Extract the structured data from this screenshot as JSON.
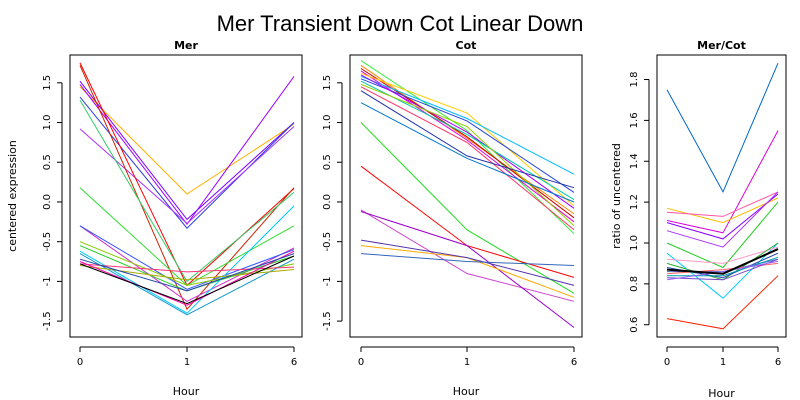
{
  "title": "Mer Transient Down Cot Linear Down",
  "chart_data": [
    {
      "type": "line",
      "title": "Mer",
      "xlabel": "Hour",
      "ylabel": "centered expression",
      "x_ticks": [
        "0",
        "1",
        "6"
      ],
      "y_ticks": [
        "-1.5",
        "-1",
        "-0.5",
        "0.0",
        "0.5",
        "1.0",
        "1.5"
      ],
      "ylim": [
        -1.7,
        1.85
      ],
      "series": [
        {
          "color": "#ffb000",
          "values": [
            1.45,
            0.1,
            0.98
          ]
        },
        {
          "color": "#7f00ff",
          "values": [
            1.52,
            -0.22,
            1.0
          ]
        },
        {
          "color": "#2a3fdd",
          "values": [
            1.32,
            -0.33,
            1.0
          ]
        },
        {
          "color": "#9d00ff",
          "values": [
            1.48,
            -0.28,
            1.58
          ]
        },
        {
          "color": "#aa33ff",
          "values": [
            0.92,
            -0.27,
            0.95
          ]
        },
        {
          "color": "#ff0000",
          "values": [
            1.75,
            -1.05,
            0.17
          ]
        },
        {
          "color": "#cc2200",
          "values": [
            1.72,
            -1.35,
            0.18
          ]
        },
        {
          "color": "#33cc66",
          "values": [
            1.28,
            -1.0,
            0.12
          ]
        },
        {
          "color": "#33dd33",
          "values": [
            0.18,
            -1.05,
            -0.3
          ]
        },
        {
          "color": "#cc33cc",
          "values": [
            -0.3,
            -1.25,
            -0.58
          ]
        },
        {
          "color": "#3355ff",
          "values": [
            -0.3,
            -1.1,
            -0.6
          ]
        },
        {
          "color": "#88cc00",
          "values": [
            -0.5,
            -1.05,
            -0.78
          ]
        },
        {
          "color": "#22cc22",
          "values": [
            -0.55,
            -1.12,
            -0.68
          ]
        },
        {
          "color": "#00ccff",
          "values": [
            -0.62,
            -1.4,
            -0.05
          ]
        },
        {
          "color": "#1199cc",
          "values": [
            -0.65,
            -1.42,
            -0.72
          ]
        },
        {
          "color": "#ff3377",
          "values": [
            -0.78,
            -0.88,
            -0.82
          ]
        },
        {
          "color": "#aaaa00",
          "values": [
            -0.8,
            -0.98,
            -0.85
          ]
        },
        {
          "color": "#ff00aa",
          "values": [
            -0.75,
            -1.3,
            -0.62
          ]
        },
        {
          "color": "#000000",
          "values": [
            -0.78,
            -1.28,
            -0.68
          ]
        },
        {
          "color": "#2244aa",
          "values": [
            -0.72,
            -1.12,
            -0.65
          ]
        }
      ]
    },
    {
      "type": "line",
      "title": "Cot",
      "xlabel": "Hour",
      "ylabel": "",
      "x_ticks": [
        "0",
        "1",
        "6"
      ],
      "y_ticks": [
        "-1.5",
        "-1",
        "-0.5",
        "0.0",
        "0.5",
        "1.0",
        "1.5"
      ],
      "ylim": [
        -1.7,
        1.85
      ],
      "series": [
        {
          "color": "#33ee33",
          "values": [
            1.78,
            0.9,
            -0.4
          ]
        },
        {
          "color": "#ff8800",
          "values": [
            1.72,
            0.8,
            -0.15
          ]
        },
        {
          "color": "#cc0000",
          "values": [
            1.68,
            0.82,
            -0.2
          ]
        },
        {
          "color": "#dd00dd",
          "values": [
            1.65,
            0.78,
            -0.25
          ]
        },
        {
          "color": "#ffcc00",
          "values": [
            1.62,
            1.12,
            -0.05
          ]
        },
        {
          "color": "#00bbff",
          "values": [
            1.58,
            1.05,
            0.35
          ]
        },
        {
          "color": "#2244dd",
          "values": [
            1.55,
            1.02,
            0.12
          ]
        },
        {
          "color": "#aa00ff",
          "values": [
            1.6,
            0.88,
            -0.08
          ]
        },
        {
          "color": "#00ccaa",
          "values": [
            1.52,
            0.85,
            0.03
          ]
        },
        {
          "color": "#99cc00",
          "values": [
            1.48,
            0.95,
            -0.3
          ]
        },
        {
          "color": "#ff3366",
          "values": [
            1.45,
            0.75,
            -0.35
          ]
        },
        {
          "color": "#0077cc",
          "values": [
            1.25,
            0.55,
            0.0
          ]
        },
        {
          "color": "#2233aa",
          "values": [
            1.4,
            0.58,
            0.18
          ]
        },
        {
          "color": "#22dd22",
          "values": [
            1.0,
            -0.35,
            -1.15
          ]
        },
        {
          "color": "#ff0000",
          "values": [
            0.45,
            -0.55,
            -0.95
          ]
        },
        {
          "color": "#cc44cc",
          "values": [
            -0.1,
            -0.9,
            -1.25
          ]
        },
        {
          "color": "#9900cc",
          "values": [
            -0.12,
            -0.55,
            -1.58
          ]
        },
        {
          "color": "#ffaa00",
          "values": [
            -0.55,
            -0.7,
            -1.2
          ]
        },
        {
          "color": "#5533aa",
          "values": [
            -0.48,
            -0.7,
            -1.05
          ]
        },
        {
          "color": "#3366bb",
          "values": [
            -0.65,
            -0.75,
            -0.8
          ]
        }
      ]
    },
    {
      "type": "line",
      "title": "Mer/Cot",
      "xlabel": "Hour",
      "ylabel": "ratio of uncentered",
      "x_ticks": [
        "0",
        "1",
        "6"
      ],
      "y_ticks": [
        "0.6",
        "0.8",
        "1.0",
        "1.2",
        "1.4",
        "1.6",
        "1.8"
      ],
      "ylim": [
        0.54,
        1.92
      ],
      "series": [
        {
          "color": "#0066cc",
          "values": [
            1.75,
            1.25,
            1.88
          ]
        },
        {
          "color": "#dd00dd",
          "values": [
            1.11,
            1.05,
            1.55
          ]
        },
        {
          "color": "#ffbb00",
          "values": [
            1.17,
            1.1,
            1.22
          ]
        },
        {
          "color": "#ff55aa",
          "values": [
            1.15,
            1.13,
            1.25
          ]
        },
        {
          "color": "#8800ff",
          "values": [
            1.1,
            1.02,
            1.24
          ]
        },
        {
          "color": "#aa33ff",
          "values": [
            1.06,
            0.98,
            1.25
          ]
        },
        {
          "color": "#22cc22",
          "values": [
            1.0,
            0.88,
            1.2
          ]
        },
        {
          "color": "#00ccff",
          "values": [
            0.95,
            0.73,
            1.0
          ]
        },
        {
          "color": "#ff99cc",
          "values": [
            0.92,
            0.9,
            0.98
          ]
        },
        {
          "color": "#33aa33",
          "values": [
            0.9,
            0.82,
            1.0
          ]
        },
        {
          "color": "#2244aa",
          "values": [
            0.88,
            0.83,
            0.95
          ]
        },
        {
          "color": "#5566cc",
          "values": [
            0.86,
            0.86,
            0.92
          ]
        },
        {
          "color": "#ff6666",
          "values": [
            0.85,
            0.87,
            0.9
          ]
        },
        {
          "color": "#0099aa",
          "values": [
            0.84,
            0.84,
            0.93
          ]
        },
        {
          "color": "#7744cc",
          "values": [
            0.83,
            0.82,
            0.92
          ]
        },
        {
          "color": "#9966ff",
          "values": [
            0.82,
            0.86,
            0.91
          ]
        },
        {
          "color": "#000000",
          "values": [
            0.87,
            0.85,
            0.97
          ]
        },
        {
          "color": "#ff2200",
          "values": [
            0.63,
            0.58,
            0.84
          ]
        }
      ]
    }
  ]
}
